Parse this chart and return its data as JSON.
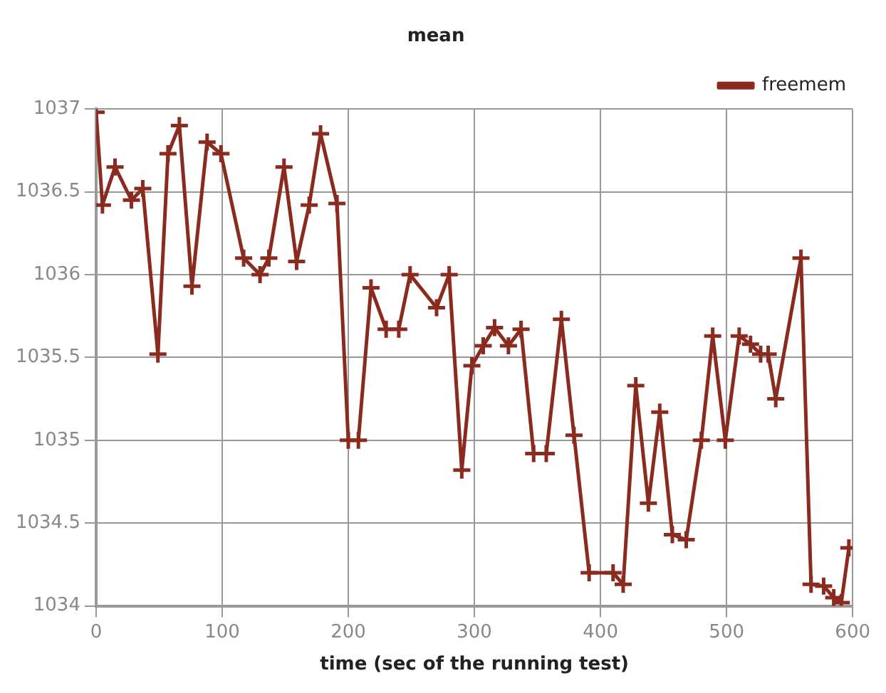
{
  "chart_data": {
    "type": "line",
    "title": "mean",
    "xlabel": "time (sec of the running test)",
    "x": [
      0,
      5,
      15,
      28,
      37,
      49,
      57,
      66,
      76,
      88,
      99,
      117,
      130,
      137,
      149,
      159,
      169,
      178,
      191,
      200,
      208,
      218,
      230,
      240,
      249,
      270,
      280,
      290,
      298,
      307,
      316,
      327,
      337,
      347,
      357,
      369,
      379,
      391,
      410,
      418,
      428,
      438,
      447,
      457,
      468,
      480,
      489,
      499,
      510,
      519,
      527,
      533,
      539,
      559,
      567,
      577,
      585,
      591,
      597
    ],
    "series": [
      {
        "name": "freemem",
        "color": "#8b2a1e",
        "values": [
          1036.98,
          1036.42,
          1036.65,
          1036.45,
          1036.52,
          1035.52,
          1036.73,
          1036.9,
          1035.93,
          1036.8,
          1036.73,
          1036.1,
          1036.0,
          1036.1,
          1036.65,
          1036.08,
          1036.42,
          1036.85,
          1036.43,
          1035.0,
          1035.0,
          1035.92,
          1035.67,
          1035.67,
          1036.0,
          1035.8,
          1036.0,
          1034.82,
          1035.45,
          1035.57,
          1035.68,
          1035.57,
          1035.67,
          1034.92,
          1034.92,
          1035.73,
          1035.03,
          1034.2,
          1034.2,
          1034.13,
          1035.33,
          1034.62,
          1035.17,
          1034.43,
          1034.4,
          1035.0,
          1035.63,
          1035.0,
          1035.63,
          1035.58,
          1035.52,
          1035.52,
          1035.25,
          1036.1,
          1034.13,
          1034.12,
          1034.05,
          1034.02,
          1034.35
        ]
      }
    ],
    "xlim": [
      0,
      600
    ],
    "xticks": [
      0,
      100,
      200,
      300,
      400,
      500,
      600
    ],
    "ylim": [
      1034,
      1037
    ],
    "yticks": [
      1034,
      1034.5,
      1035,
      1035.5,
      1036,
      1036.5,
      1037
    ],
    "grid": true,
    "legend": "top right",
    "marker": "cross",
    "line_style": "solid"
  }
}
